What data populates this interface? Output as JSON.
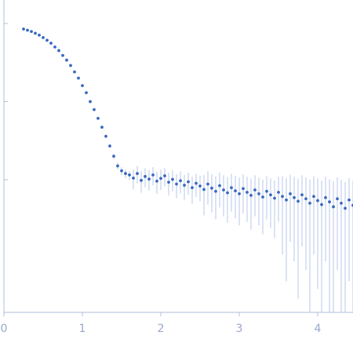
{
  "chart_data": {
    "type": "scatter",
    "log_y": true,
    "xlim": [
      0,
      4.45
    ],
    "xticks": [
      0,
      1,
      2,
      3,
      4
    ],
    "ylim": [
      0.0002,
      2
    ],
    "yticks": [
      0.01,
      0.1,
      1
    ],
    "point_color": "#3a68c0",
    "error_color": "#b7c7ea",
    "series": [
      {
        "x": [
          0.25,
          0.3,
          0.35,
          0.4,
          0.45,
          0.5,
          0.55,
          0.6,
          0.65,
          0.7,
          0.75,
          0.8,
          0.85,
          0.9,
          0.95,
          1.0,
          1.05,
          1.1,
          1.15,
          1.2,
          1.25,
          1.3,
          1.35,
          1.4,
          1.45,
          1.5,
          1.55,
          1.6,
          1.65,
          1.7,
          1.75,
          1.8,
          1.85,
          1.9,
          1.95,
          2.0,
          2.05,
          2.1,
          2.15,
          2.2,
          2.25,
          2.3,
          2.35,
          2.4,
          2.45,
          2.5,
          2.55,
          2.6,
          2.65,
          2.7,
          2.75,
          2.8,
          2.85,
          2.9,
          2.95,
          3.0,
          3.05,
          3.1,
          3.15,
          3.2,
          3.25,
          3.3,
          3.35,
          3.4,
          3.45,
          3.5,
          3.55,
          3.6,
          3.65,
          3.7,
          3.75,
          3.8,
          3.85,
          3.9,
          3.95,
          4.0,
          4.05,
          4.1,
          4.15,
          4.2,
          4.25,
          4.3,
          4.35,
          4.4,
          4.45
        ],
        "values": [
          0.85,
          0.82,
          0.79,
          0.75,
          0.71,
          0.66,
          0.61,
          0.56,
          0.5,
          0.45,
          0.39,
          0.34,
          0.29,
          0.24,
          0.2,
          0.16,
          0.13,
          0.1,
          0.079,
          0.061,
          0.047,
          0.036,
          0.027,
          0.02,
          0.015,
          0.013,
          0.012,
          0.0115,
          0.0105,
          0.012,
          0.0098,
          0.011,
          0.0102,
          0.0115,
          0.0096,
          0.0104,
          0.0112,
          0.0093,
          0.0101,
          0.0088,
          0.0097,
          0.0085,
          0.0094,
          0.0079,
          0.009,
          0.0083,
          0.0075,
          0.0088,
          0.0078,
          0.0071,
          0.0084,
          0.0074,
          0.0068,
          0.0079,
          0.0072,
          0.0066,
          0.0077,
          0.0069,
          0.0063,
          0.0074,
          0.0066,
          0.006,
          0.0071,
          0.0064,
          0.0058,
          0.0069,
          0.0061,
          0.0055,
          0.0066,
          0.0059,
          0.0053,
          0.0064,
          0.0057,
          0.005,
          0.0061,
          0.0054,
          0.0048,
          0.0059,
          0.0052,
          0.0045,
          0.0057,
          0.005,
          0.0043,
          0.0055,
          0.0047
        ],
        "errors": [
          0.002,
          0.002,
          0.002,
          0.002,
          0.002,
          0.002,
          0.002,
          0.002,
          0.002,
          0.002,
          0.002,
          0.002,
          0.002,
          0.002,
          0.002,
          0.002,
          0.0015,
          0.0015,
          0.0015,
          0.0015,
          0.0015,
          0.0015,
          0.0015,
          0.0015,
          0.0015,
          0.0015,
          0.0015,
          0.0015,
          0.003,
          0.003,
          0.003,
          0.003,
          0.003,
          0.003,
          0.003,
          0.003,
          0.003,
          0.003,
          0.003,
          0.003,
          0.003,
          0.003,
          0.003,
          0.003,
          0.003,
          0.003,
          0.004,
          0.004,
          0.004,
          0.004,
          0.004,
          0.004,
          0.004,
          0.004,
          0.004,
          0.004,
          0.004,
          0.004,
          0.004,
          0.004,
          0.004,
          0.004,
          0.004,
          0.004,
          0.004,
          0.004,
          0.005,
          0.005,
          0.005,
          0.005,
          0.005,
          0.005,
          0.005,
          0.005,
          0.005,
          0.005,
          0.005,
          0.005,
          0.005,
          0.005,
          0.005,
          0.005,
          0.005,
          0.005,
          0.005
        ]
      }
    ]
  }
}
